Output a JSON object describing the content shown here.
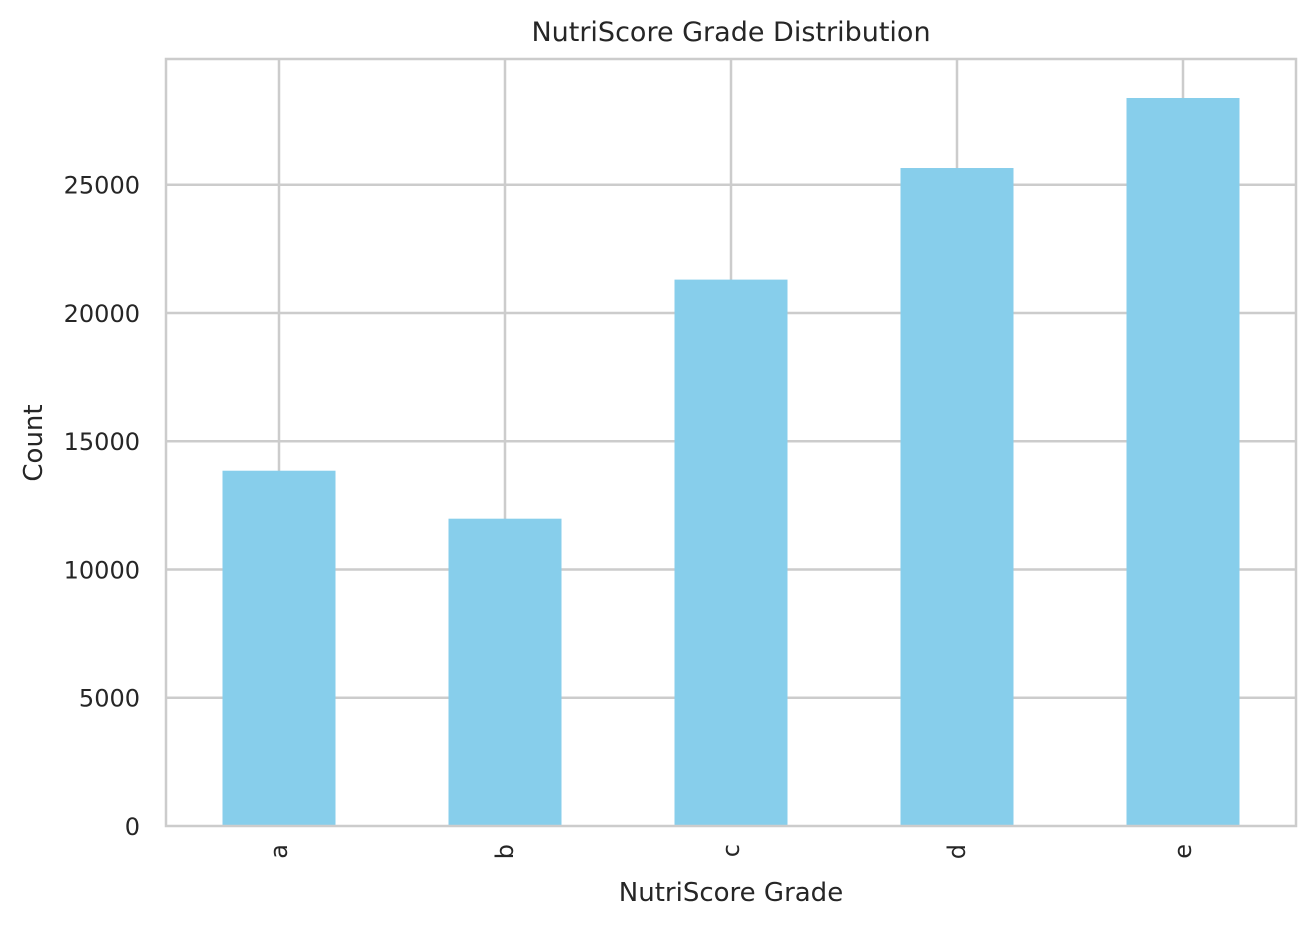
{
  "chart_data": {
    "type": "bar",
    "title": "NutriScore Grade Distribution",
    "xlabel": "NutriScore Grade",
    "ylabel": "Count",
    "categories": [
      "a",
      "b",
      "c",
      "d",
      "e"
    ],
    "values": [
      13850,
      11980,
      21300,
      25650,
      28380
    ],
    "ylim": [
      0,
      29900
    ],
    "yticks": [
      0,
      5000,
      10000,
      15000,
      20000,
      25000
    ],
    "bar_color": "#87ceeb",
    "grid": true,
    "legend": "none"
  }
}
